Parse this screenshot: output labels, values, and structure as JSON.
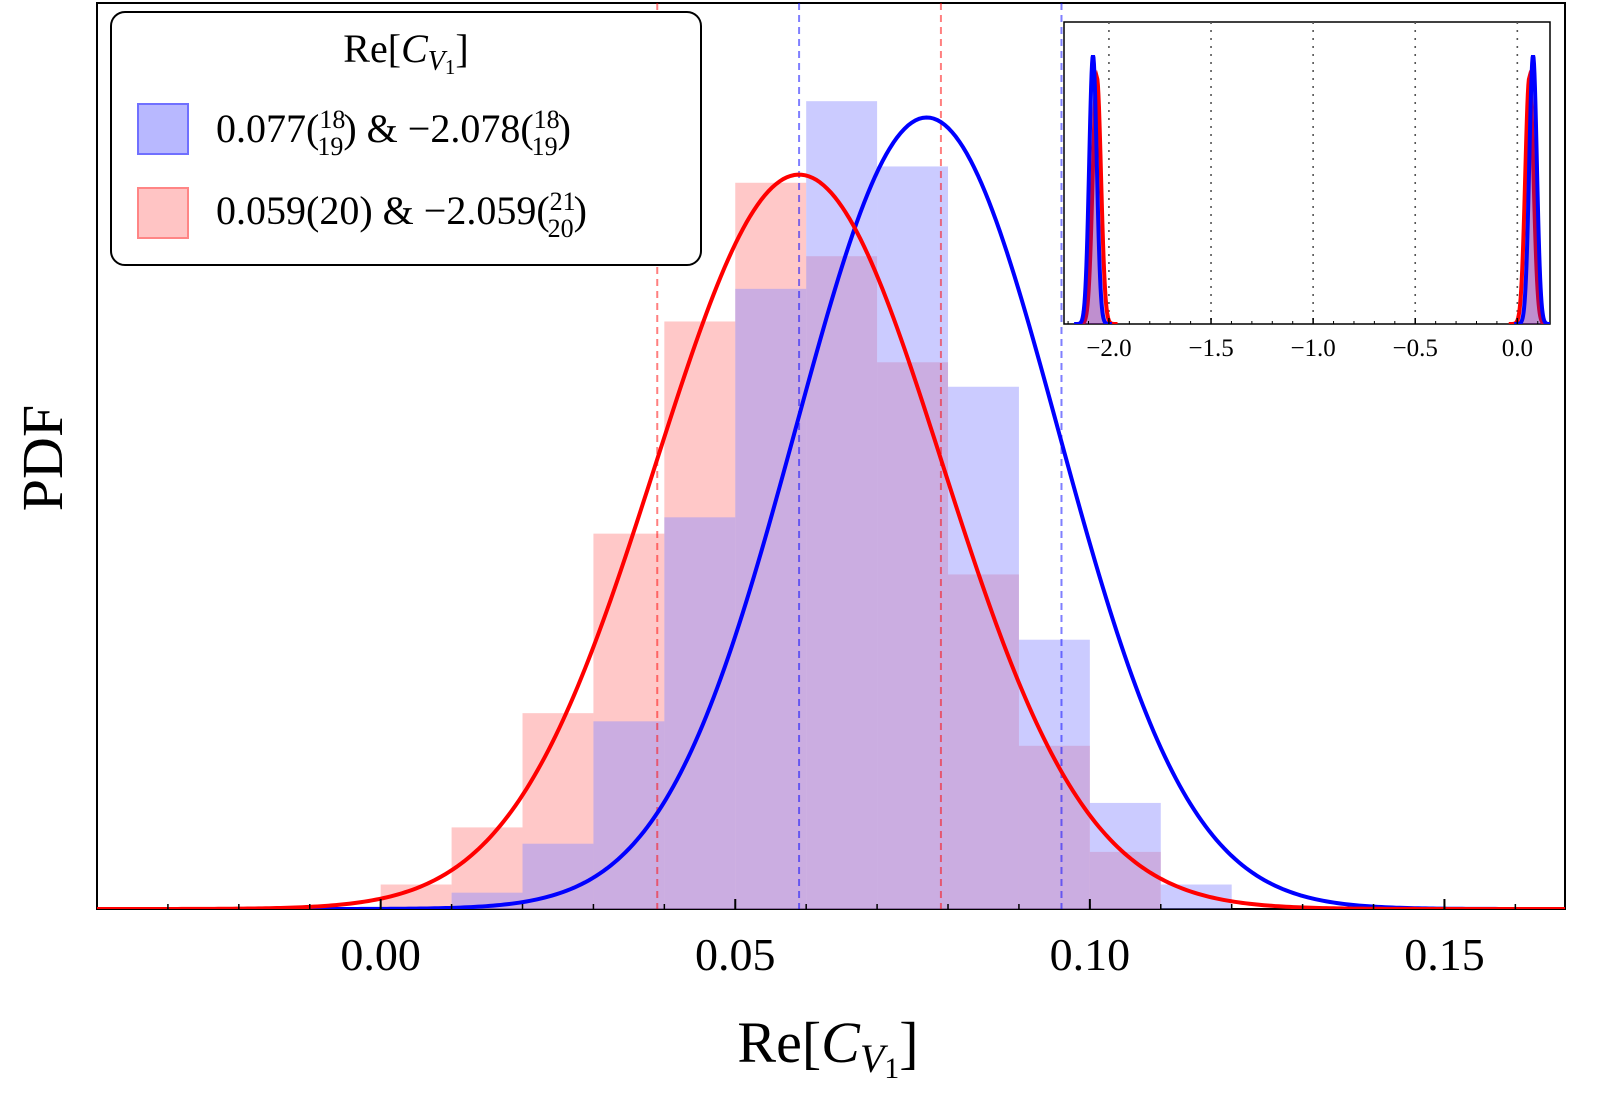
{
  "chart_data": [
    {
      "type": "histogram+line",
      "title": "",
      "xlabel": "Re[C_V1]",
      "ylabel": "PDF",
      "xlim": [
        -0.04,
        0.167
      ],
      "ylim": [
        0,
        1.0
      ],
      "x_ticks": [
        "0.00",
        "0.05",
        "0.10",
        "0.15"
      ],
      "x_tick_values": [
        0.0,
        0.05,
        0.1,
        0.15
      ],
      "legend": {
        "position": "top-left",
        "title_main": "Re[",
        "title_var": "C",
        "title_sub_var": "V",
        "title_sub_num": "1",
        "title_close": "]"
      },
      "series": [
        {
          "name": "blue",
          "color": "#0000ff",
          "fill": "#8c8cff",
          "legend_value": "0.077",
          "legend_sup": "18",
          "legend_sub": "19",
          "legend_amp": " & ",
          "legend_value2": "−2.078",
          "legend_sup2": "18",
          "legend_sub2": "19",
          "mean": 0.077,
          "sigma": 0.0185,
          "peak": 0.97,
          "interval": [
            0.059,
            0.096
          ],
          "bin_edges": [
            0.01,
            0.02,
            0.03,
            0.04,
            0.05,
            0.06,
            0.07,
            0.08,
            0.09,
            0.1,
            0.11,
            0.12,
            0.13
          ],
          "bin_heights": [
            0.02,
            0.08,
            0.23,
            0.48,
            0.76,
            0.99,
            0.91,
            0.64,
            0.33,
            0.13,
            0.03,
            0.0
          ]
        },
        {
          "name": "red",
          "color": "#ff0000",
          "fill": "#ff9b9b",
          "legend_value": "0.059(20)",
          "legend_amp": " & ",
          "legend_value2": "−2.059",
          "legend_sup2": "21",
          "legend_sub2": "20",
          "mean": 0.059,
          "sigma": 0.0202,
          "peak": 0.9,
          "interval": [
            0.039,
            0.079
          ],
          "bin_edges": [
            0.0,
            0.01,
            0.02,
            0.03,
            0.04,
            0.05,
            0.06,
            0.07,
            0.08,
            0.09,
            0.1,
            0.11
          ],
          "bin_heights": [
            0.03,
            0.1,
            0.24,
            0.46,
            0.72,
            0.89,
            0.8,
            0.67,
            0.41,
            0.2,
            0.07
          ]
        }
      ]
    },
    {
      "type": "line",
      "role": "inset",
      "xlim": [
        -2.22,
        0.16
      ],
      "ylim": [
        0,
        1.0
      ],
      "x_ticks": [
        "−2.0",
        "−1.5",
        "−1.0",
        "−0.5",
        "0.0"
      ],
      "x_tick_values": [
        -2.0,
        -1.5,
        -1.0,
        -0.5,
        0.0
      ],
      "grid": "vertical dotted",
      "peaks": [
        {
          "series": "blue",
          "color": "#0000ff",
          "centers": [
            -2.078,
            0.077
          ],
          "sigma": 0.0185,
          "height": 0.98
        },
        {
          "series": "red",
          "color": "#ff0000",
          "centers": [
            -2.059,
            0.059
          ],
          "sigma": 0.0202,
          "height": 0.9
        }
      ]
    }
  ]
}
